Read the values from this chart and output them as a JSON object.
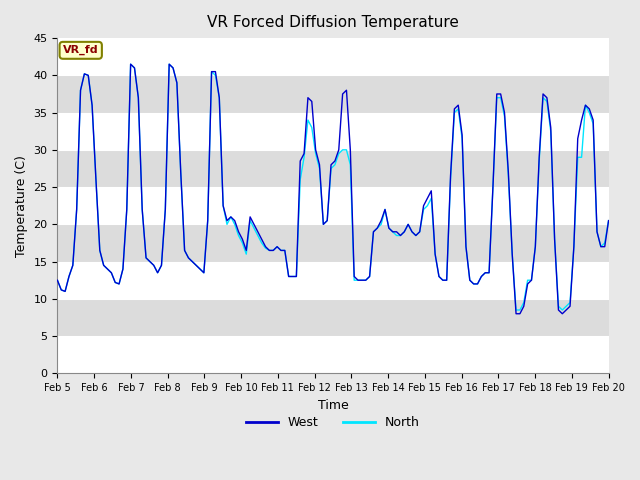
{
  "title": "VR Forced Diffusion Temperature",
  "xlabel": "Time",
  "ylabel": "Temperature (C)",
  "ylim": [
    0,
    45
  ],
  "yticks": [
    0,
    5,
    10,
    15,
    20,
    25,
    30,
    35,
    40,
    45
  ],
  "xtick_labels": [
    "Feb 5",
    "Feb 6",
    "Feb 7",
    "Feb 8",
    "Feb 9",
    "Feb 10",
    "Feb 11",
    "Feb 12",
    "Feb 13",
    "Feb 14",
    "Feb 15",
    "Feb 16",
    "Feb 17",
    "Feb 18",
    "Feb 19",
    "Feb 20"
  ],
  "west_color": "#0000CC",
  "north_color": "#00E5FF",
  "background_color": "#E8E8E8",
  "plot_bg_color": "#FFFFFF",
  "band_color": "#DCDCDC",
  "annotation_text": "VR_fd",
  "annotation_bg": "#FFFFCC",
  "annotation_fg": "#8B0000",
  "annotation_border": "#808000",
  "legend_west": "West",
  "legend_north": "North",
  "west_data": [
    12.5,
    11.2,
    11.0,
    13.0,
    14.5,
    22.0,
    38.0,
    40.2,
    40.0,
    36.0,
    26.0,
    16.5,
    14.5,
    14.0,
    13.5,
    12.2,
    12.0,
    14.0,
    22.0,
    41.5,
    41.0,
    37.0,
    22.0,
    15.5,
    15.0,
    14.5,
    13.5,
    14.5,
    22.0,
    41.5,
    41.0,
    39.0,
    27.0,
    16.5,
    15.5,
    15.0,
    14.5,
    14.0,
    13.5,
    20.5,
    40.5,
    40.5,
    37.0,
    22.5,
    20.5,
    21.0,
    20.5,
    19.0,
    18.0,
    16.5,
    21.0,
    20.0,
    19.0,
    18.0,
    17.0,
    16.5,
    16.5,
    17.0,
    16.5,
    16.5,
    13.0,
    13.0,
    13.0,
    28.5,
    29.5,
    37.0,
    36.5,
    30.0,
    28.0,
    20.0,
    20.5,
    28.0,
    28.5,
    30.0,
    37.5,
    38.0,
    30.0,
    13.0,
    12.5,
    12.5,
    12.5,
    13.0,
    19.0,
    19.5,
    20.5,
    22.0,
    19.5,
    19.0,
    19.0,
    18.5,
    19.0,
    20.0,
    19.0,
    18.5,
    19.0,
    22.5,
    23.5,
    24.5,
    16.0,
    13.0,
    12.5,
    12.5,
    26.5,
    35.5,
    36.0,
    32.0,
    17.0,
    12.5,
    12.0,
    12.0,
    13.0,
    13.5,
    13.5,
    25.0,
    37.5,
    37.5,
    35.0,
    27.0,
    16.0,
    8.0,
    8.0,
    9.0,
    12.0,
    12.5,
    17.0,
    29.0,
    37.5,
    37.0,
    33.0,
    18.0,
    8.5,
    8.0,
    8.5,
    9.0,
    17.0,
    31.5,
    34.0,
    36.0,
    35.5,
    34.0,
    19.0,
    17.0,
    17.0,
    20.5
  ],
  "north_data": [
    12.5,
    11.2,
    11.0,
    13.0,
    14.5,
    22.0,
    38.0,
    40.2,
    40.0,
    36.0,
    26.0,
    16.5,
    14.5,
    14.0,
    13.5,
    12.2,
    12.0,
    14.0,
    22.0,
    41.5,
    41.0,
    37.0,
    22.0,
    15.5,
    15.0,
    14.5,
    13.5,
    14.5,
    22.0,
    41.5,
    41.0,
    39.0,
    27.0,
    16.5,
    15.5,
    15.0,
    14.5,
    14.0,
    13.5,
    20.5,
    40.5,
    40.0,
    37.0,
    22.5,
    20.0,
    21.0,
    20.0,
    18.5,
    17.5,
    16.0,
    20.5,
    19.5,
    18.5,
    17.5,
    16.8,
    16.5,
    16.5,
    17.0,
    16.5,
    16.5,
    13.0,
    13.0,
    13.0,
    26.0,
    29.0,
    34.0,
    33.0,
    29.5,
    27.5,
    20.0,
    20.5,
    27.5,
    28.0,
    29.5,
    30.0,
    30.0,
    28.0,
    12.5,
    12.5,
    12.5,
    12.5,
    13.0,
    19.0,
    19.5,
    20.0,
    22.0,
    19.5,
    19.0,
    18.5,
    18.5,
    19.0,
    20.0,
    19.0,
    18.5,
    19.0,
    22.0,
    22.5,
    23.5,
    16.0,
    13.0,
    12.5,
    12.5,
    26.0,
    35.0,
    35.5,
    31.5,
    17.0,
    12.5,
    12.0,
    12.0,
    13.0,
    13.5,
    13.5,
    25.0,
    37.0,
    37.0,
    34.5,
    26.5,
    16.0,
    8.5,
    8.5,
    9.5,
    12.5,
    12.5,
    17.0,
    28.5,
    37.0,
    36.5,
    32.5,
    18.0,
    9.0,
    8.5,
    9.0,
    9.5,
    17.0,
    29.0,
    29.0,
    36.0,
    35.0,
    33.5,
    19.0,
    17.0,
    17.5,
    20.5
  ]
}
